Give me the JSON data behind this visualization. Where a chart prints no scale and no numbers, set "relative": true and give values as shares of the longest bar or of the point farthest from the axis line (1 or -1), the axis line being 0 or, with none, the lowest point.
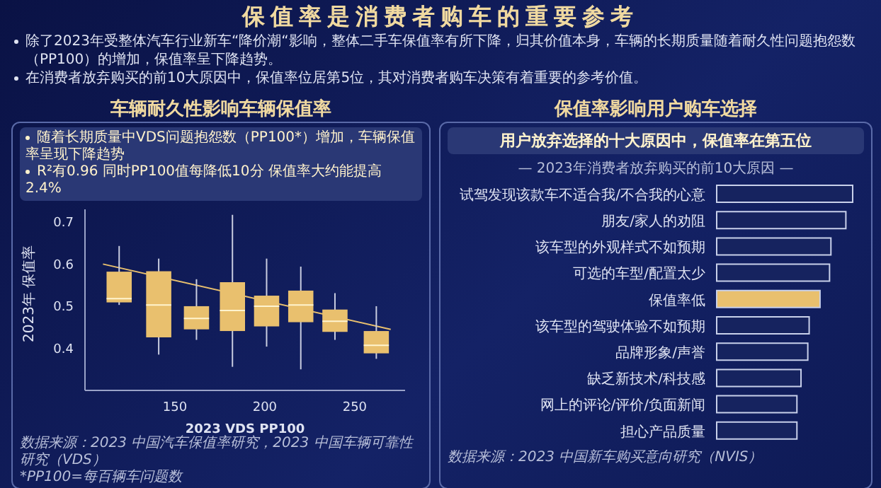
{
  "chart_data": [
    {
      "type": "other",
      "title": "保值率是消费者购车的重要参考",
      "annotations": [
        "除了2023年受整体汽车行业新车“降价潮“影响，整体二手车保值率有所下降，归其价值本身，车辆的长期质量随着耐久性问题抱怨数（PP100）的增加，保值率呈下降趋势。",
        "在消费者放弃购买的前10大原因中，保值率位居第5位，其对消费者购车决策有着重要的参考价值。"
      ]
    },
    {
      "type": "box",
      "title": "车辆耐久性影响车辆保值率",
      "xlabel": "2023 VDS PP100",
      "ylabel": "2023年 保值率",
      "xlim": [
        100,
        278
      ],
      "xticks": [
        150,
        200,
        250
      ],
      "ylim": [
        0.3,
        0.73
      ],
      "yticks": [
        0.4,
        0.5,
        0.6,
        0.7
      ],
      "annotations": [
        "随着长期质量中VDS问题抱怨数（PP100*）增加，车辆保值率呈现下降趋势",
        "R²有0.96  同时PP100值每降低10分 保值率大约能提高 2.4%",
        "数据来源：2023 中国汽车保值率研究，2023 中国车辆可靠性研究（VDS）",
        "*PP100=每百辆车问题数"
      ],
      "series": [
        {
          "type": "box",
          "color": "#e9c06e",
          "x": [
            119,
            141,
            162,
            182,
            201,
            220,
            239,
            262
          ],
          "boxes": [
            {
              "low": 0.503,
              "q1": 0.509,
              "median": 0.518,
              "q3": 0.582,
              "high": 0.643
            },
            {
              "low": 0.385,
              "q1": 0.426,
              "median": 0.503,
              "q3": 0.583,
              "high": 0.613
            },
            {
              "low": 0.42,
              "q1": 0.445,
              "median": 0.471,
              "q3": 0.5,
              "high": 0.564
            },
            {
              "low": 0.356,
              "q1": 0.441,
              "median": 0.49,
              "q3": 0.557,
              "high": 0.717
            },
            {
              "low": 0.404,
              "q1": 0.452,
              "median": 0.5,
              "q3": 0.525,
              "high": 0.613
            },
            {
              "low": 0.35,
              "q1": 0.462,
              "median": 0.503,
              "q3": 0.537,
              "high": 0.594
            },
            {
              "low": 0.42,
              "q1": 0.439,
              "median": 0.464,
              "q3": 0.492,
              "high": 0.531
            },
            {
              "low": 0.375,
              "q1": 0.388,
              "median": 0.407,
              "q3": 0.441,
              "high": 0.5
            }
          ]
        },
        {
          "type": "line",
          "color": "#e9c06e",
          "x": [
            110,
            270
          ],
          "values": [
            0.6,
            0.445
          ]
        }
      ]
    },
    {
      "type": "bar",
      "orientation": "horizontal",
      "relative": true,
      "title": "保值率影响用户购车选择",
      "subtitle": "用户放弃选择的十大原因中，保值率在第五位",
      "annotations": [
        "— 2023年消费者放弃购买的前10大原因 —",
        "数据来源：2023 中国新车购买意向研究（NVIS）"
      ],
      "categories": [
        "试驾发现该款车不适合我/不合我的心意",
        "朋友/家人的劝阻",
        "该车型的外观样式不如预期",
        "可选的车型/配置太少",
        "保值率低",
        "该车型的驾驶体验不如预期",
        "品牌形象/声誉",
        "缺乏新技术/科技感",
        "网上的评论/评价/负面新闻",
        "担心产品质量"
      ],
      "values": [
        1,
        0.95,
        0.84,
        0.83,
        0.76,
        0.68,
        0.67,
        0.62,
        0.59,
        0.59
      ],
      "colors": [
        "#16235f",
        "#16235f",
        "#16235f",
        "#16235f",
        "#e9c06e",
        "#16235f",
        "#16235f",
        "#16235f",
        "#16235f",
        "#16235f"
      ]
    }
  ]
}
